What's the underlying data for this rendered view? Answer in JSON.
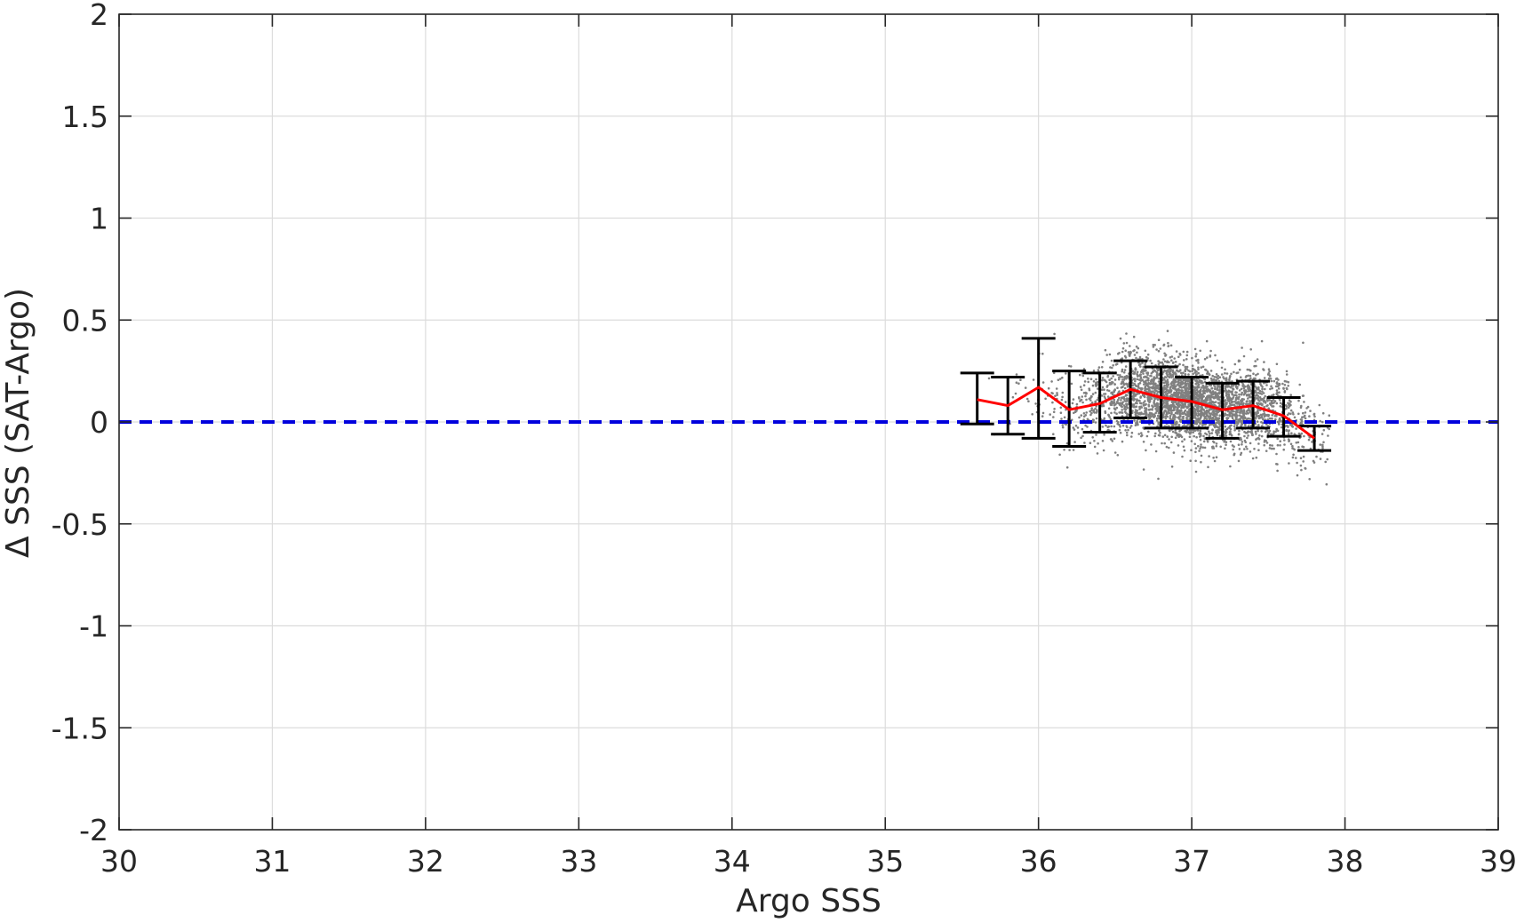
{
  "chart_data": {
    "type": "scatter",
    "xlabel": "Argo SSS",
    "ylabel": "Δ SSS (SAT-Argo)",
    "xlim": [
      30,
      39
    ],
    "ylim": [
      -2,
      2
    ],
    "xticks": [
      30,
      31,
      32,
      33,
      34,
      35,
      36,
      37,
      38,
      39
    ],
    "xtick_labels": [
      "30",
      "31",
      "32",
      "33",
      "34",
      "35",
      "36",
      "37",
      "38",
      "39"
    ],
    "yticks": [
      2,
      1.5,
      1,
      0.5,
      0,
      -0.5,
      -1,
      -1.5,
      -2
    ],
    "ytick_labels": [
      "2",
      "1.5",
      "1",
      "0.5",
      "0",
      "-0.5",
      "-1",
      "-1.5",
      "-2"
    ],
    "grid": true,
    "legend": "none",
    "reference_line": {
      "y": 0,
      "style": "dashed",
      "color": "#0000dd"
    },
    "scatter": {
      "color": "#808080",
      "x_range": [
        35.5,
        37.9
      ],
      "y_spread_center": 0.07,
      "points_approx": 3500
    },
    "binned_mean": {
      "color": "#ff0000",
      "x": [
        35.6,
        35.8,
        36.0,
        36.2,
        36.4,
        36.6,
        36.8,
        37.0,
        37.2,
        37.4,
        37.6,
        37.8
      ],
      "y": [
        0.11,
        0.08,
        0.17,
        0.06,
        0.09,
        0.16,
        0.12,
        0.1,
        0.06,
        0.08,
        0.03,
        -0.08
      ]
    },
    "error_bars": {
      "color": "#000000",
      "x": [
        35.6,
        35.8,
        36.0,
        36.2,
        36.4,
        36.6,
        36.8,
        37.0,
        37.2,
        37.4,
        37.6,
        37.8
      ],
      "lower": [
        -0.01,
        -0.06,
        -0.08,
        -0.12,
        -0.05,
        0.02,
        -0.03,
        -0.03,
        -0.08,
        -0.03,
        -0.07,
        -0.14
      ],
      "upper": [
        0.24,
        0.22,
        0.41,
        0.25,
        0.24,
        0.3,
        0.27,
        0.22,
        0.19,
        0.2,
        0.12,
        -0.02
      ]
    }
  }
}
